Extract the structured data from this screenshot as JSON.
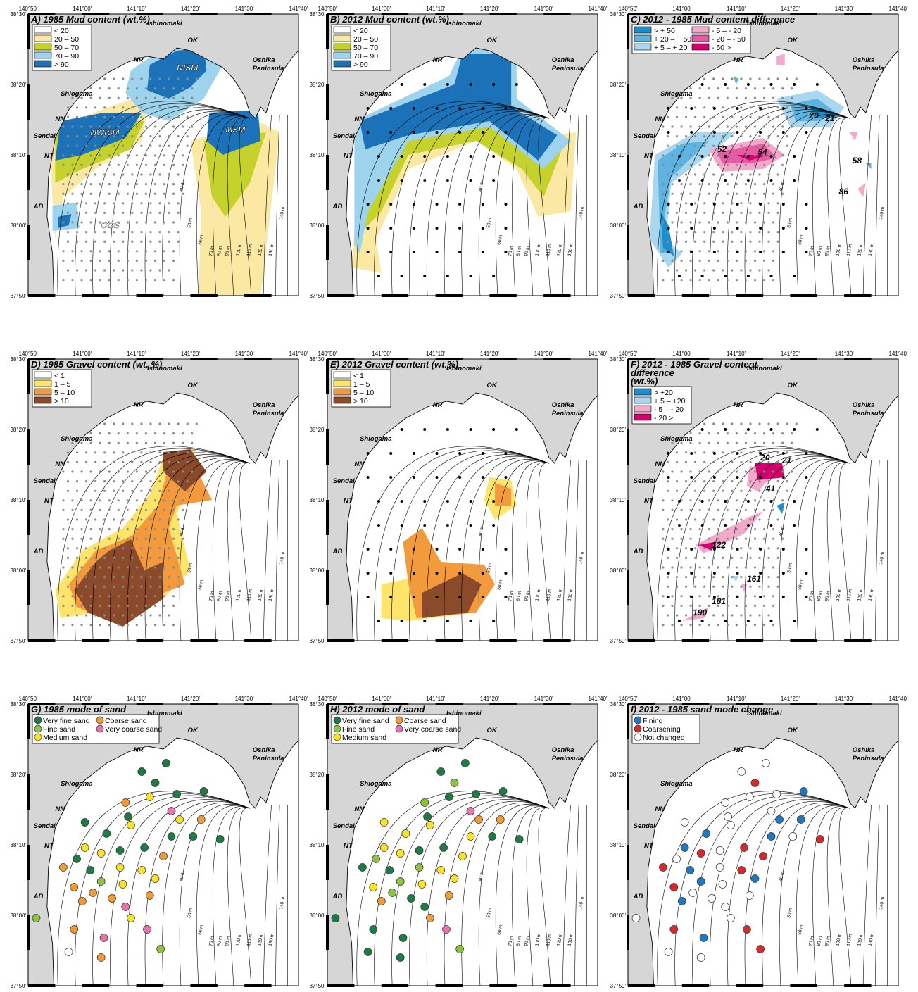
{
  "axes": {
    "lon": [
      "140°50'",
      "141°00'",
      "141°10'",
      "141°20'",
      "141°30'",
      "141°40'"
    ],
    "lat": [
      "38°30'",
      "38°20'",
      "38°10'",
      "38°00'",
      "37°50'"
    ]
  },
  "places": [
    "Ishinomaki",
    "OK",
    "NR",
    "Oshika",
    "Peninsula",
    "Shiogama",
    "NN",
    "Sendai",
    "NT",
    "AB"
  ],
  "depths": [
    "40 m",
    "50 m",
    "60 m",
    "70 m",
    "80 m",
    "90 m",
    "100 m",
    "110 m",
    "120 m",
    "130 m",
    "140 m"
  ],
  "panels": [
    {
      "title": [
        "A) 1985 Mud content (wt.%)"
      ],
      "legend": [
        {
          "label": "< 20",
          "color": "#ffffff"
        },
        {
          "label": "20 – 50",
          "color": "#fbe9a3"
        },
        {
          "label": "50 – 70",
          "color": "#c5d22c"
        },
        {
          "label": "70 – 90",
          "color": "#9dd3ec"
        },
        {
          "label": "> 90",
          "color": "#1b72b8"
        }
      ],
      "labels": [
        "NISM",
        "NWISM",
        "MSM",
        "CGS"
      ]
    },
    {
      "title": [
        "B) 2012 Mud content (wt.%)"
      ],
      "legend": [
        {
          "label": "< 20",
          "color": "#ffffff"
        },
        {
          "label": "20 – 50",
          "color": "#fbe9a3"
        },
        {
          "label": "50 – 70",
          "color": "#c5d22c"
        },
        {
          "label": "70 – 90",
          "color": "#9dd3ec"
        },
        {
          "label": "> 90",
          "color": "#1b72b8"
        }
      ],
      "labels": []
    },
    {
      "title": [
        "C) 2012 - 1985 Mud content difference"
      ],
      "legend": [
        {
          "label": "> + 50",
          "color": "#1a8fcf"
        },
        {
          "label": "+ 20 – + 50",
          "color": "#5db4e2"
        },
        {
          "label": "+ 5 – + 20",
          "color": "#a8d7ef"
        },
        {
          "label": "- 5 – - 20",
          "color": "#f3a8cc"
        },
        {
          "label": "- 20 – - 50",
          "color": "#e65ba4"
        },
        {
          "label": "- 50 >",
          "color": "#d4006e"
        }
      ],
      "labels": [
        20,
        21,
        52,
        54,
        58,
        86
      ]
    },
    {
      "title": [
        "D) 1985 Gravel content (wt. %)"
      ],
      "legend": [
        {
          "label": "< 1",
          "color": "#ffffff"
        },
        {
          "label": "1 – 5",
          "color": "#fde46b"
        },
        {
          "label": "5 – 10",
          "color": "#f39a3c"
        },
        {
          "label": "> 10",
          "color": "#8b4a2a"
        }
      ],
      "labels": []
    },
    {
      "title": [
        "E) 2012 Gravel content (wt.%)"
      ],
      "legend": [
        {
          "label": "< 1",
          "color": "#ffffff"
        },
        {
          "label": "1 – 5",
          "color": "#fde46b"
        },
        {
          "label": "5 – 10",
          "color": "#f39a3c"
        },
        {
          "label": "> 10",
          "color": "#8b4a2a"
        }
      ],
      "labels": []
    },
    {
      "title": [
        "F) 2012 - 1985 Gravel content",
        "difference",
        "(wt.%)"
      ],
      "legend": [
        {
          "label": "> +20",
          "color": "#1a8fcf"
        },
        {
          "label": "+ 5 – +20",
          "color": "#a8d7ef"
        },
        {
          "label": "- 5 – - 20",
          "color": "#f3a8cc"
        },
        {
          "label": "- 20 >",
          "color": "#d4006e"
        }
      ],
      "labels": [
        20,
        21,
        41,
        122,
        161,
        181,
        190
      ]
    },
    {
      "title": [
        "G) 1985 mode of sand"
      ],
      "legend": [
        {
          "label": "Very fine sand",
          "color": "#1e7b44"
        },
        {
          "label": "Fine sand",
          "color": "#8cc43f"
        },
        {
          "label": "Medium sand",
          "color": "#f9e227"
        },
        {
          "label": "Coarse sand",
          "color": "#f29a34"
        },
        {
          "label": "Very coarse sand",
          "color": "#e774a9"
        }
      ],
      "labels": []
    },
    {
      "title": [
        "H) 2012 mode of sand"
      ],
      "legend": [
        {
          "label": "Very fine sand",
          "color": "#1e7b44"
        },
        {
          "label": "Fine sand",
          "color": "#8cc43f"
        },
        {
          "label": "Medium sand",
          "color": "#f9e227"
        },
        {
          "label": "Coarse sand",
          "color": "#f29a34"
        },
        {
          "label": "Very coarse sand",
          "color": "#e774a9"
        }
      ],
      "labels": []
    },
    {
      "title": [
        "I) 2012 - 1985 sand mode change"
      ],
      "legend": [
        {
          "label": "Fining",
          "color": "#1e78c2"
        },
        {
          "label": "Coarsening",
          "color": "#d7282c"
        },
        {
          "label": "Not changed",
          "color": "#ffffff"
        }
      ],
      "labels": []
    }
  ]
}
